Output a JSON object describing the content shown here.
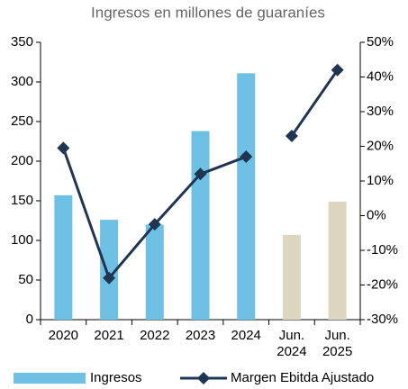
{
  "chart_data": {
    "type": "bar_line",
    "title": "Ingresos en millones de guaraníes",
    "categories": [
      "2020",
      "2021",
      "2022",
      "2023",
      "2024",
      "Jun. 2024",
      "Jun. 2025"
    ],
    "series": [
      {
        "name": "Ingresos",
        "type": "bar",
        "axis": "y",
        "color": "#6ec1e4",
        "colors": [
          "#6ec1e4",
          "#6ec1e4",
          "#6ec1e4",
          "#6ec1e4",
          "#6ec1e4",
          "#ddd6c1",
          "#ddd6c1"
        ],
        "values": [
          157,
          126,
          120,
          238,
          311,
          107,
          149
        ]
      },
      {
        "name": "Margen Ebitda Ajustado",
        "type": "line",
        "axis": "y2",
        "color": "#1f3552",
        "values": [
          19.5,
          -18,
          -2.5,
          12,
          17,
          23,
          42
        ]
      }
    ],
    "ylim": [
      0,
      350
    ],
    "yticks": [
      0,
      50,
      100,
      150,
      200,
      250,
      300,
      350
    ],
    "y2lim": [
      -30,
      50
    ],
    "y2ticks": [
      {
        "value": -30,
        "label": "-30%"
      },
      {
        "value": -20,
        "label": "-20%"
      },
      {
        "value": -10,
        "label": "-10%"
      },
      {
        "value": 0,
        "label": "0%"
      },
      {
        "value": 10,
        "label": "10%"
      },
      {
        "value": 20,
        "label": "20%"
      },
      {
        "value": 30,
        "label": "30%"
      },
      {
        "value": 40,
        "label": "40%"
      },
      {
        "value": 50,
        "label": "50%"
      }
    ],
    "grid": false
  }
}
